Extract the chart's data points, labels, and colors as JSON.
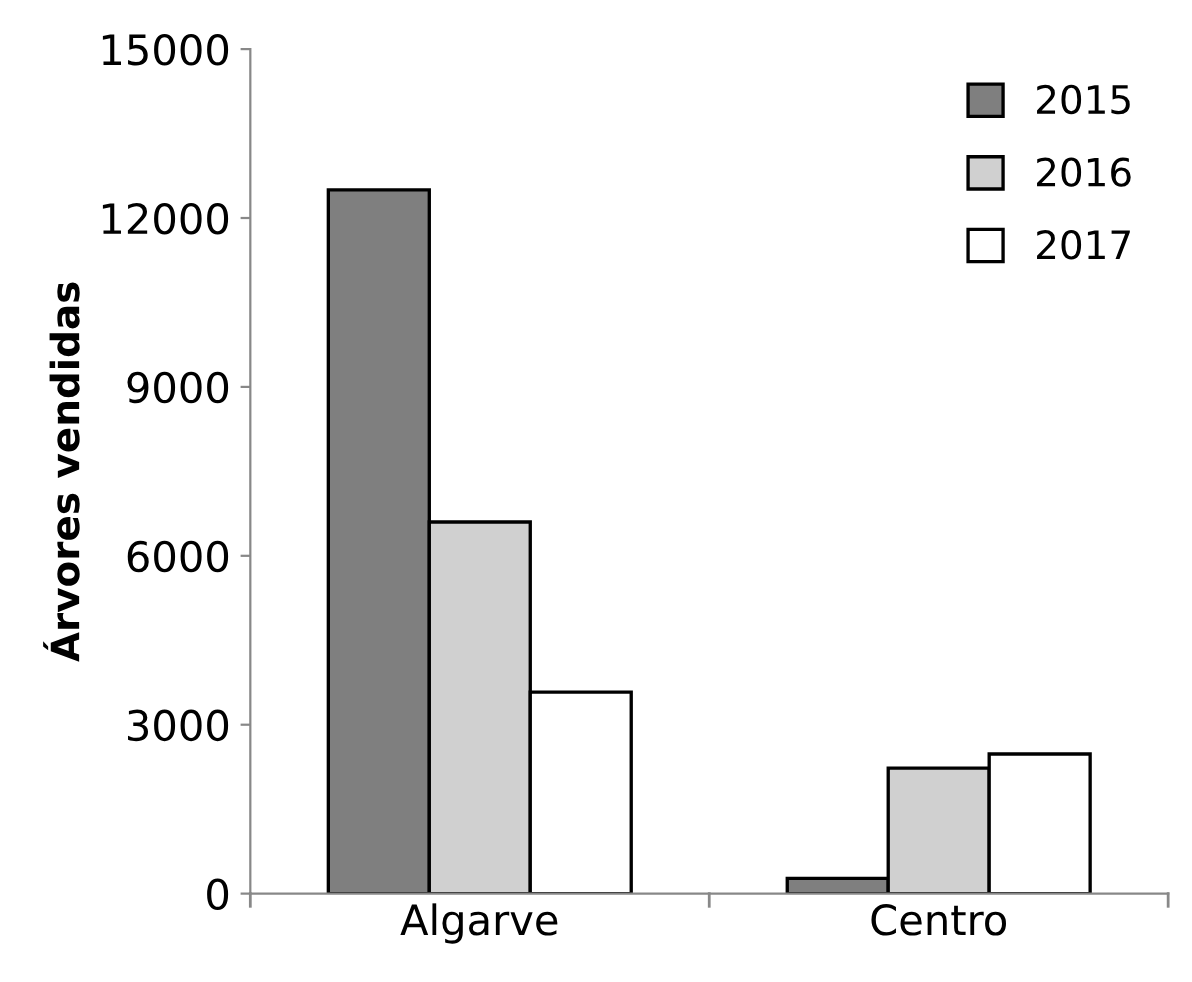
{
  "chart_data": {
    "type": "bar",
    "ylabel": "Árvores vendidas",
    "categories": [
      "Algarve",
      "Centro"
    ],
    "series": [
      {
        "name": "2015",
        "color": "#7f7f7f",
        "values": [
          12500,
          270
        ]
      },
      {
        "name": "2016",
        "color": "#d0d0d0",
        "values": [
          6600,
          2230
        ]
      },
      {
        "name": "2017",
        "color": "#ffffff",
        "values": [
          3580,
          2480
        ]
      }
    ],
    "ylim": [
      0,
      15000
    ],
    "yticks": [
      0,
      3000,
      6000,
      9000,
      12000,
      15000
    ],
    "grid": false,
    "legend": "top right"
  }
}
